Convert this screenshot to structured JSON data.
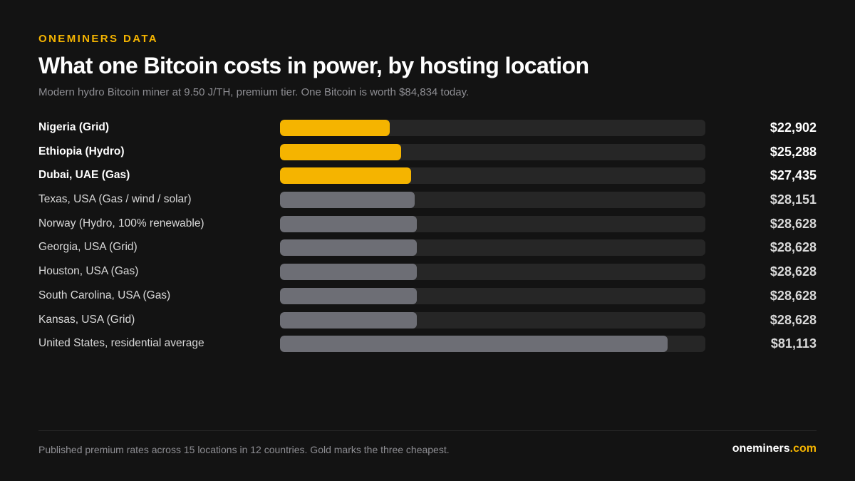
{
  "header": {
    "eyebrow": "ONEMINERS DATA",
    "title": "What one Bitcoin costs in power, by hosting location",
    "subtitle": "Modern hydro Bitcoin miner at 9.50 J/TH, premium tier. One Bitcoin is worth $84,834 today."
  },
  "chart_data": {
    "type": "bar",
    "orientation": "horizontal",
    "categories": [
      "Nigeria (Grid)",
      "Ethiopia (Hydro)",
      "Dubai, UAE (Gas)",
      "Texas, USA (Gas / wind / solar)",
      "Norway (Hydro, 100% renewable)",
      "Georgia, USA (Grid)",
      "Houston, USA (Gas)",
      "South Carolina, USA (Gas)",
      "Kansas, USA (Grid)",
      "United States, residential average"
    ],
    "values": [
      22902,
      25288,
      27435,
      28151,
      28628,
      28628,
      28628,
      28628,
      28628,
      81113
    ],
    "value_labels": [
      "$22,902",
      "$25,288",
      "$27,435",
      "$28,151",
      "$28,628",
      "$28,628",
      "$28,628",
      "$28,628",
      "$28,628",
      "$81,113"
    ],
    "highlighted": [
      true,
      true,
      true,
      false,
      false,
      false,
      false,
      false,
      false,
      false
    ],
    "xlim": [
      0,
      89000
    ],
    "grid": false,
    "colors": {
      "highlight": "#f5b400",
      "default": "#6d6e75",
      "track": "#262626"
    }
  },
  "footer": {
    "note": "Published premium rates across 15 locations in 12 countries. Gold marks the three cheapest.",
    "brand_name": "oneminers",
    "brand_tld": ".com"
  }
}
